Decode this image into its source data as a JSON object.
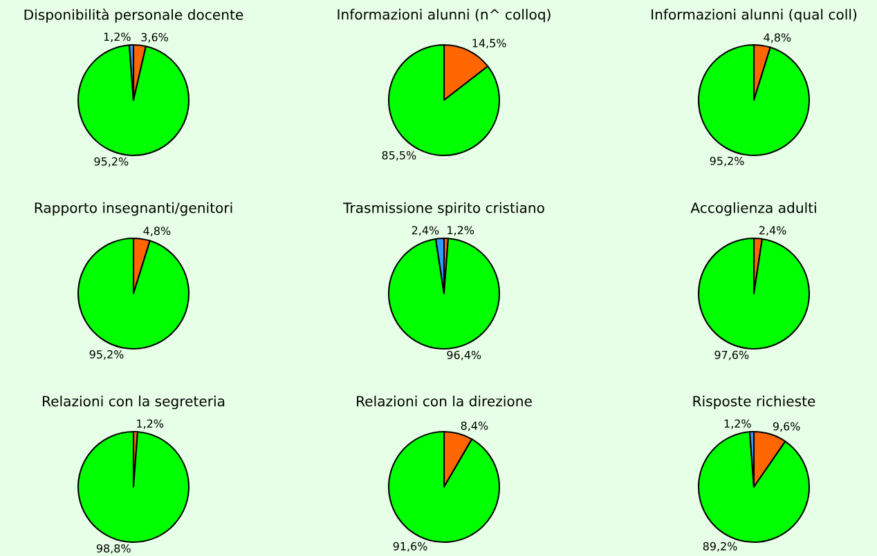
{
  "chart_data": [
    {
      "type": "pie",
      "title": "Disponibilità personale docente",
      "categories": [
        null,
        null,
        null
      ],
      "values": [
        3.6,
        95.2,
        1.2
      ],
      "colors": [
        "#ff6600",
        "#00ff00",
        "#3399ff"
      ],
      "value_labels": [
        "3,6%",
        "95,2%",
        "1,2%"
      ]
    },
    {
      "type": "pie",
      "title": "Informazioni alunni (n^ colloq)",
      "categories": [
        null,
        null
      ],
      "values": [
        14.5,
        85.5
      ],
      "colors": [
        "#ff6600",
        "#00ff00"
      ],
      "value_labels": [
        "14,5%",
        "85,5%"
      ]
    },
    {
      "type": "pie",
      "title": "Informazioni alunni (qual coll)",
      "categories": [
        null,
        null
      ],
      "values": [
        4.8,
        95.2
      ],
      "colors": [
        "#ff6600",
        "#00ff00"
      ],
      "value_labels": [
        "4,8%",
        "95,2%"
      ]
    },
    {
      "type": "pie",
      "title": "Rapporto insegnanti/genitori",
      "categories": [
        null,
        null
      ],
      "values": [
        4.8,
        95.2
      ],
      "colors": [
        "#ff6600",
        "#00ff00"
      ],
      "value_labels": [
        "4,8%",
        "95,2%"
      ]
    },
    {
      "type": "pie",
      "title": "Trasmissione spirito cristiano",
      "categories": [
        null,
        null,
        null
      ],
      "values": [
        1.2,
        96.4,
        2.4
      ],
      "colors": [
        "#ff6600",
        "#00ff00",
        "#3399ff"
      ],
      "value_labels": [
        "1,2%",
        "96,4%",
        "2,4%"
      ]
    },
    {
      "type": "pie",
      "title": "Accoglienza adulti",
      "categories": [
        null,
        null
      ],
      "values": [
        2.4,
        97.6
      ],
      "colors": [
        "#ff6600",
        "#00ff00"
      ],
      "value_labels": [
        "2,4%",
        "97,6%"
      ]
    },
    {
      "type": "pie",
      "title": "Relazioni con la segreteria",
      "categories": [
        null,
        null
      ],
      "values": [
        1.2,
        98.8
      ],
      "colors": [
        "#ff6600",
        "#00ff00"
      ],
      "value_labels": [
        "1,2%",
        "98,8%"
      ]
    },
    {
      "type": "pie",
      "title": "Relazioni con la direzione",
      "categories": [
        null,
        null
      ],
      "values": [
        8.4,
        91.6
      ],
      "colors": [
        "#ff6600",
        "#00ff00"
      ],
      "value_labels": [
        "8,4%",
        "91,6%"
      ]
    },
    {
      "type": "pie",
      "title": "Risposte richieste",
      "categories": [
        null,
        null,
        null
      ],
      "values": [
        9.6,
        89.2,
        1.2
      ],
      "colors": [
        "#ff6600",
        "#00ff00",
        "#3399ff"
      ],
      "value_labels": [
        "9,6%",
        "89,2%",
        "1,2%"
      ]
    }
  ]
}
